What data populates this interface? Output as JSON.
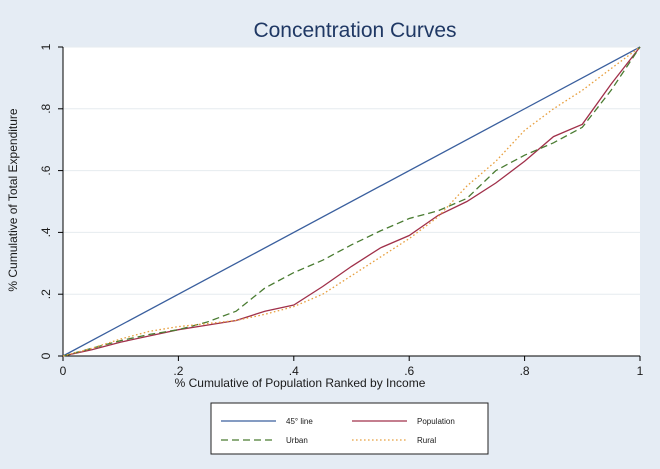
{
  "chart_data": {
    "type": "line",
    "title": "Concentration Curves",
    "xlabel": "% Cumulative of Population Ranked by Income",
    "ylabel": "% Cumulative of Total Expenditure",
    "xlim": [
      0,
      1
    ],
    "ylim": [
      0,
      1
    ],
    "x_ticks": [
      "0",
      ".2",
      ".4",
      ".6",
      ".8",
      "1"
    ],
    "y_ticks": [
      "0",
      ".2",
      ".4",
      ".6",
      ".8",
      "1"
    ],
    "grid": true,
    "legend_position": "bottom",
    "series": [
      {
        "name": "45° line",
        "color": "#3a5f9e",
        "style": "solid",
        "x": [
          0,
          1
        ],
        "y": [
          0,
          1
        ]
      },
      {
        "name": "Population",
        "color": "#a0304a",
        "style": "solid",
        "x": [
          0,
          0.05,
          0.1,
          0.15,
          0.2,
          0.25,
          0.3,
          0.35,
          0.4,
          0.45,
          0.5,
          0.55,
          0.6,
          0.65,
          0.7,
          0.75,
          0.8,
          0.85,
          0.9,
          0.95,
          1.0
        ],
        "y": [
          0,
          0.02,
          0.045,
          0.065,
          0.085,
          0.1,
          0.115,
          0.145,
          0.165,
          0.225,
          0.29,
          0.35,
          0.39,
          0.455,
          0.5,
          0.56,
          0.63,
          0.71,
          0.75,
          0.88,
          1.0
        ]
      },
      {
        "name": "Urban",
        "color": "#4a7c32",
        "style": "dashed",
        "x": [
          0,
          0.05,
          0.1,
          0.15,
          0.2,
          0.25,
          0.3,
          0.35,
          0.4,
          0.45,
          0.5,
          0.55,
          0.6,
          0.65,
          0.7,
          0.75,
          0.8,
          0.85,
          0.9,
          0.95,
          1.0
        ],
        "y": [
          0,
          0.025,
          0.05,
          0.07,
          0.085,
          0.11,
          0.145,
          0.22,
          0.27,
          0.31,
          0.36,
          0.405,
          0.445,
          0.47,
          0.51,
          0.6,
          0.65,
          0.69,
          0.74,
          0.86,
          1.0
        ]
      },
      {
        "name": "Rural",
        "color": "#e8a040",
        "style": "dotted",
        "x": [
          0,
          0.05,
          0.1,
          0.15,
          0.2,
          0.25,
          0.3,
          0.35,
          0.4,
          0.45,
          0.5,
          0.55,
          0.6,
          0.65,
          0.7,
          0.75,
          0.8,
          0.85,
          0.9,
          0.95,
          1.0
        ],
        "y": [
          0,
          0.025,
          0.055,
          0.08,
          0.095,
          0.105,
          0.115,
          0.135,
          0.16,
          0.2,
          0.26,
          0.32,
          0.38,
          0.45,
          0.55,
          0.63,
          0.73,
          0.8,
          0.86,
          0.93,
          1.0
        ]
      }
    ]
  }
}
